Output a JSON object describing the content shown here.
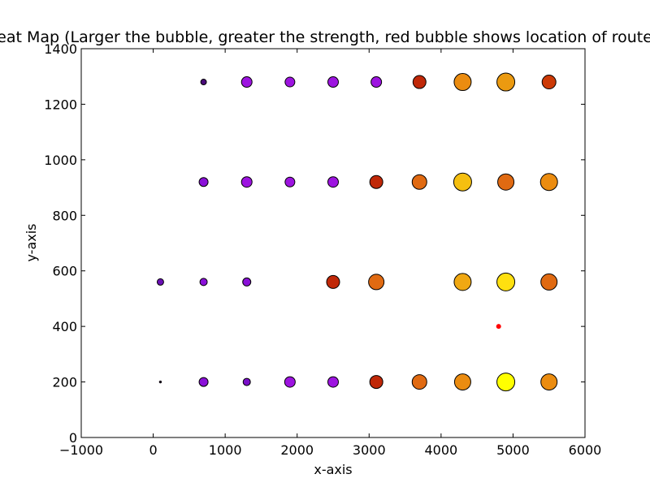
{
  "chart_data": {
    "type": "scatter",
    "title": "Heat Map (Larger the bubble, greater the strength, red bubble shows location of router)",
    "xlabel": "x-axis",
    "ylabel": "y-axis",
    "xlim": [
      -1000,
      6000
    ],
    "ylim": [
      0,
      1400
    ],
    "x_ticks": [
      -1000,
      0,
      1000,
      2000,
      3000,
      4000,
      5000,
      6000
    ],
    "y_ticks": [
      0,
      200,
      400,
      600,
      800,
      1000,
      1200,
      1400
    ],
    "x_tick_labels": [
      "−1000",
      "0",
      "1000",
      "2000",
      "3000",
      "4000",
      "5000",
      "6000"
    ],
    "y_tick_labels": [
      "0",
      "200",
      "400",
      "600",
      "800",
      "1000",
      "1200",
      "1400"
    ],
    "grid": false,
    "marker_size_encodes": "strength",
    "points": [
      {
        "x": 100,
        "y": 200,
        "size": 1,
        "color": "#1a0a1f"
      },
      {
        "x": 700,
        "y": 200,
        "size": 5.5,
        "color": "#8a10d8"
      },
      {
        "x": 1300,
        "y": 200,
        "size": 4.5,
        "color": "#7a0fc8"
      },
      {
        "x": 1900,
        "y": 200,
        "size": 6.5,
        "color": "#9d14e0"
      },
      {
        "x": 2500,
        "y": 200,
        "size": 6.5,
        "color": "#9d14e0"
      },
      {
        "x": 3100,
        "y": 200,
        "size": 8,
        "color": "#c02808"
      },
      {
        "x": 3700,
        "y": 200,
        "size": 9,
        "color": "#e06a12"
      },
      {
        "x": 4300,
        "y": 200,
        "size": 10,
        "color": "#eb8c10"
      },
      {
        "x": 4900,
        "y": 200,
        "size": 11,
        "color": "#ffff00"
      },
      {
        "x": 5500,
        "y": 200,
        "size": 10,
        "color": "#eb8c10"
      },
      {
        "x": 100,
        "y": 560,
        "size": 4,
        "color": "#6a10b5"
      },
      {
        "x": 700,
        "y": 560,
        "size": 4.5,
        "color": "#8a10d8"
      },
      {
        "x": 1300,
        "y": 560,
        "size": 5,
        "color": "#8a10d8"
      },
      {
        "x": 2500,
        "y": 560,
        "size": 8,
        "color": "#c02808"
      },
      {
        "x": 3100,
        "y": 560,
        "size": 9.5,
        "color": "#e06a12"
      },
      {
        "x": 4300,
        "y": 560,
        "size": 10.5,
        "color": "#f0a812"
      },
      {
        "x": 4900,
        "y": 560,
        "size": 11,
        "color": "#ffe010"
      },
      {
        "x": 5500,
        "y": 560,
        "size": 10,
        "color": "#e06a12"
      },
      {
        "x": 700,
        "y": 920,
        "size": 5.5,
        "color": "#8a10d8"
      },
      {
        "x": 1300,
        "y": 920,
        "size": 6.5,
        "color": "#9d14e0"
      },
      {
        "x": 1900,
        "y": 920,
        "size": 6,
        "color": "#9d14e0"
      },
      {
        "x": 2500,
        "y": 920,
        "size": 6.5,
        "color": "#9d14e0"
      },
      {
        "x": 3100,
        "y": 920,
        "size": 8,
        "color": "#c02808"
      },
      {
        "x": 3700,
        "y": 920,
        "size": 9,
        "color": "#e06a12"
      },
      {
        "x": 4300,
        "y": 920,
        "size": 11,
        "color": "#f5bf10"
      },
      {
        "x": 4900,
        "y": 920,
        "size": 10,
        "color": "#e06a12"
      },
      {
        "x": 5500,
        "y": 920,
        "size": 10.5,
        "color": "#eb8c10"
      },
      {
        "x": 700,
        "y": 1280,
        "size": 3.5,
        "color": "#4a0a7a"
      },
      {
        "x": 1300,
        "y": 1280,
        "size": 6.5,
        "color": "#9d14e0"
      },
      {
        "x": 1900,
        "y": 1280,
        "size": 6,
        "color": "#9d14e0"
      },
      {
        "x": 2500,
        "y": 1280,
        "size": 6.5,
        "color": "#9d14e0"
      },
      {
        "x": 3100,
        "y": 1280,
        "size": 6.5,
        "color": "#9d14e0"
      },
      {
        "x": 3700,
        "y": 1280,
        "size": 8,
        "color": "#c02808"
      },
      {
        "x": 4300,
        "y": 1280,
        "size": 10.5,
        "color": "#eb8c10"
      },
      {
        "x": 4900,
        "y": 1280,
        "size": 11,
        "color": "#eb9a10"
      },
      {
        "x": 5500,
        "y": 1280,
        "size": 8.5,
        "color": "#cc3a06"
      }
    ],
    "router": {
      "x": 4800,
      "y": 400,
      "color": "#ff0000"
    }
  }
}
